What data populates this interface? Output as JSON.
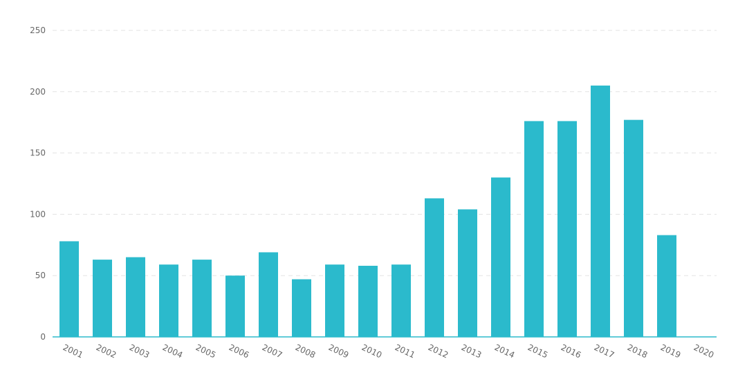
{
  "chart_data": {
    "type": "bar",
    "categories": [
      "2001",
      "2002",
      "2003",
      "2004",
      "2005",
      "2006",
      "2007",
      "2008",
      "2009",
      "2010",
      "2011",
      "2012",
      "2013",
      "2014",
      "2015",
      "2016",
      "2017",
      "2018",
      "2019",
      "2020"
    ],
    "values": [
      78,
      63,
      65,
      59,
      63,
      50,
      69,
      47,
      59,
      58,
      59,
      113,
      104,
      130,
      176,
      176,
      205,
      177,
      83,
      0
    ],
    "ylim": [
      0,
      250
    ],
    "yticks": [
      0,
      50,
      100,
      150,
      200,
      250
    ],
    "xlabel": "",
    "ylabel": "",
    "title": "",
    "grid": "horizontal dashed",
    "x_tick_rotation": "rotated clockwise",
    "colors": {
      "bar": "#2bbacc",
      "grid": "#e3e3e3",
      "axis": "#2bbacc",
      "tick_text": "#666666"
    }
  }
}
